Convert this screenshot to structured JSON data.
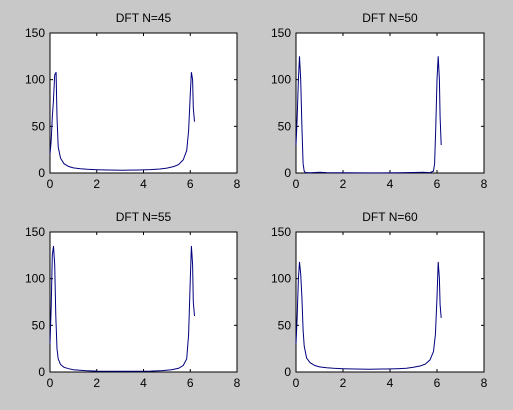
{
  "figure": {
    "background": "#c8c8c8",
    "axes_background": "#ffffff",
    "line_color": "#00007f"
  },
  "chart_data": [
    {
      "type": "line",
      "title": "DFT N=45",
      "xlim": [
        0,
        8
      ],
      "ylim": [
        0,
        150
      ],
      "xticks": [
        0,
        2,
        4,
        6,
        8
      ],
      "yticks": [
        0,
        50,
        100,
        150
      ],
      "series": [
        {
          "x": [
            0,
            0.05,
            0.1,
            0.14,
            0.2,
            0.26,
            0.3,
            0.35,
            0.45,
            0.6,
            0.8,
            1.0,
            1.3,
            1.6,
            2.0,
            2.5,
            3.14,
            3.8,
            4.3,
            4.7,
            5.0,
            5.3,
            5.5,
            5.7,
            5.85,
            5.93,
            6.0,
            6.05,
            6.1,
            6.13,
            6.18
          ],
          "y": [
            20,
            35,
            60,
            75,
            105,
            108,
            60,
            28,
            16,
            10,
            7,
            5.5,
            4.5,
            4,
            3.5,
            3.2,
            3,
            3.2,
            3.6,
            4.3,
            5.2,
            7,
            9,
            14,
            24,
            45,
            85,
            108,
            100,
            70,
            55
          ]
        }
      ]
    },
    {
      "type": "line",
      "title": "DFT N=50",
      "xlim": [
        0,
        8
      ],
      "ylim": [
        0,
        150
      ],
      "xticks": [
        0,
        2,
        4,
        6,
        8
      ],
      "yticks": [
        0,
        50,
        100,
        150
      ],
      "series": [
        {
          "x": [
            0,
            0.05,
            0.1,
            0.15,
            0.2,
            0.25,
            0.3,
            0.35,
            0.4,
            0.6,
            1.0,
            1.3,
            2.0,
            3.14,
            4.3,
            5.0,
            5.4,
            5.7,
            5.85,
            5.9,
            5.95,
            6.0,
            6.05,
            6.1,
            6.13,
            6.18
          ],
          "y": [
            30,
            60,
            100,
            125,
            100,
            50,
            10,
            2,
            0.5,
            0.3,
            0.8,
            0.4,
            0.2,
            0.1,
            0.2,
            0.5,
            0.8,
            0.4,
            2,
            10,
            50,
            100,
            125,
            100,
            60,
            30
          ]
        }
      ]
    },
    {
      "type": "line",
      "title": "DFT N=55",
      "xlim": [
        0,
        8
      ],
      "ylim": [
        0,
        150
      ],
      "xticks": [
        0,
        2,
        4,
        6,
        8
      ],
      "yticks": [
        0,
        50,
        100,
        150
      ],
      "series": [
        {
          "x": [
            0,
            0.05,
            0.1,
            0.15,
            0.2,
            0.25,
            0.3,
            0.35,
            0.45,
            0.6,
            0.8,
            1.0,
            1.5,
            2.0,
            3.14,
            4.3,
            4.8,
            5.2,
            5.5,
            5.7,
            5.85,
            5.93,
            6.0,
            6.05,
            6.1,
            6.13,
            6.18
          ],
          "y": [
            30,
            70,
            125,
            135,
            115,
            60,
            25,
            14,
            8,
            5,
            3.5,
            2.5,
            1.5,
            1,
            0.8,
            1,
            1.5,
            2.5,
            4,
            7,
            14,
            40,
            100,
            135,
            115,
            75,
            60
          ]
        }
      ]
    },
    {
      "type": "line",
      "title": "DFT N=60",
      "xlim": [
        0,
        8
      ],
      "ylim": [
        0,
        150
      ],
      "xticks": [
        0,
        2,
        4,
        6,
        8
      ],
      "yticks": [
        0,
        50,
        100,
        150
      ],
      "series": [
        {
          "x": [
            0,
            0.05,
            0.1,
            0.15,
            0.2,
            0.25,
            0.3,
            0.35,
            0.45,
            0.6,
            0.8,
            1.0,
            1.3,
            1.6,
            2.0,
            2.5,
            3.14,
            3.8,
            4.3,
            4.7,
            5.0,
            5.3,
            5.5,
            5.7,
            5.85,
            5.93,
            6.0,
            6.05,
            6.1,
            6.13,
            6.18
          ],
          "y": [
            30,
            60,
            100,
            118,
            105,
            80,
            45,
            28,
            15,
            10,
            7,
            5.5,
            4.5,
            4,
            3.5,
            3.2,
            3,
            3.2,
            3.5,
            4,
            5,
            6.5,
            8.5,
            13,
            22,
            40,
            80,
            118,
            100,
            72,
            58
          ]
        }
      ]
    }
  ]
}
